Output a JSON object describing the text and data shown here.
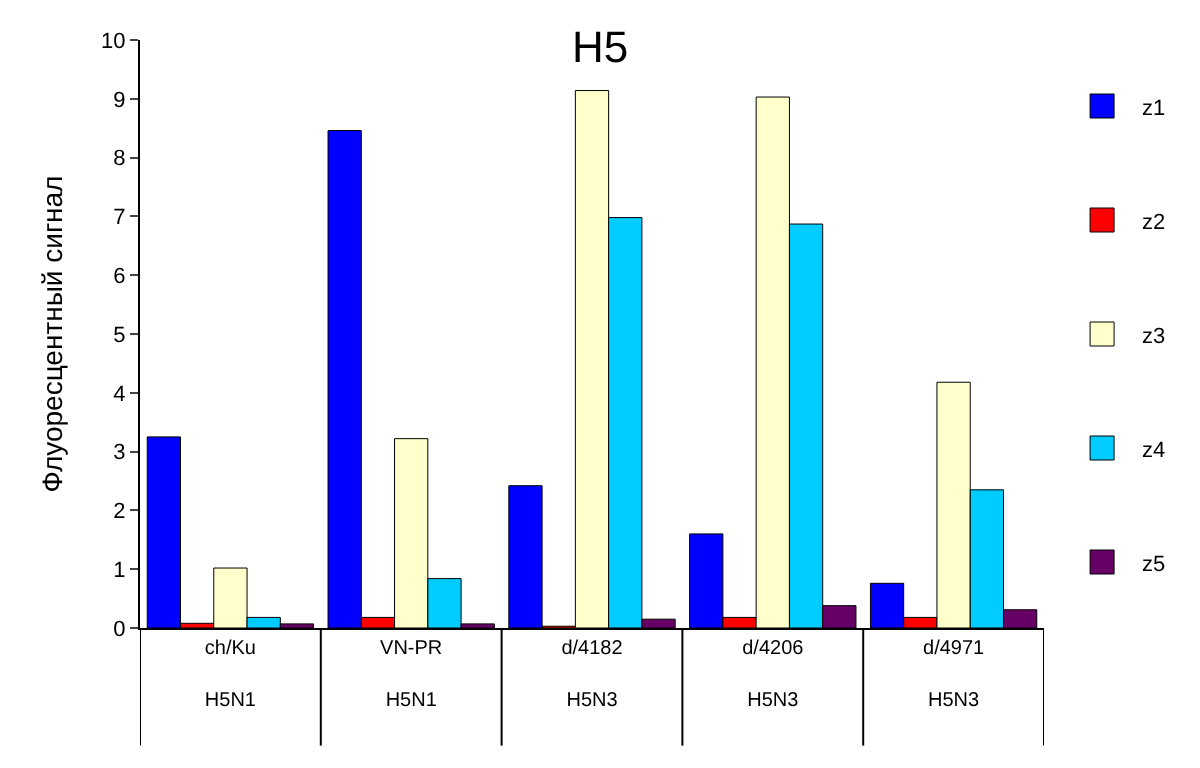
{
  "chart_data": {
    "type": "bar",
    "title": "H5",
    "ylabel": "Флуоресцентный сигнал",
    "categories": [
      "ch/Ku\nH5N1",
      "VN-PR\nH5N1",
      "d/4182\nH5N3",
      "d/4206\nH5N3",
      "d/4971\nH5N3"
    ],
    "series": [
      {
        "name": "z1",
        "color": "#0000ff",
        "values": [
          3.25,
          8.46,
          2.42,
          1.6,
          0.76
        ]
      },
      {
        "name": "z2",
        "color": "#ff0000",
        "values": [
          0.08,
          0.18,
          0.03,
          0.18,
          0.18
        ]
      },
      {
        "name": "z3",
        "color": "#ffffcc",
        "values": [
          1.02,
          3.22,
          9.14,
          9.03,
          4.18
        ]
      },
      {
        "name": "z4",
        "color": "#00ccff",
        "values": [
          0.18,
          0.84,
          6.98,
          6.87,
          2.35
        ]
      },
      {
        "name": "z5",
        "color": "#660066",
        "values": [
          0.07,
          0.07,
          0.15,
          0.38,
          0.31
        ]
      }
    ],
    "ylim": [
      0,
      10
    ],
    "yticks": [
      0,
      1,
      2,
      3,
      4,
      5,
      6,
      7,
      8,
      9,
      10
    ],
    "grid": false,
    "legend": "right"
  }
}
